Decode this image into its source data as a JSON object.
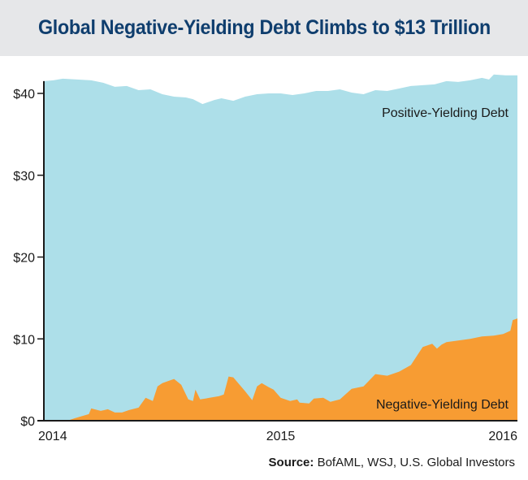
{
  "title": "Global Negative-Yielding Debt Climbs to $13 Trillion",
  "source": {
    "label": "Source:",
    "text": "BofAML, WSJ, U.S. Global Investors"
  },
  "colors": {
    "title": "#0f3e6e",
    "title_bar_bg": "#e6e7e9",
    "positive": "#addfe9",
    "negative": "#f79c33",
    "axis": "#1a1a1a"
  },
  "chart_data": {
    "type": "area",
    "stacked": true,
    "title": "Global Negative-Yielding Debt Climbs to $13 Trillion",
    "xlabel": "",
    "ylabel": "",
    "units": "USD trillions",
    "xlim": [
      2014.0,
      2016.0
    ],
    "ylim": [
      0,
      42
    ],
    "grid": false,
    "x_ticks": [
      {
        "value": 2014,
        "label": "2014"
      },
      {
        "value": 2015,
        "label": "2015"
      },
      {
        "value": 2016,
        "label": "2016"
      }
    ],
    "y_ticks": [
      {
        "value": 0,
        "label": "$0"
      },
      {
        "value": 10,
        "label": "$10"
      },
      {
        "value": 20,
        "label": "$20"
      },
      {
        "value": 30,
        "label": "$30"
      },
      {
        "value": 40,
        "label": "$40"
      }
    ],
    "series": [
      {
        "name": "Negative-Yielding Debt",
        "label": "Negative-Yielding Debt",
        "x": [
          2014.0,
          2014.1,
          2014.13,
          2014.19,
          2014.2,
          2014.24,
          2014.27,
          2014.3,
          2014.33,
          2014.36,
          2014.4,
          2014.43,
          2014.46,
          2014.48,
          2014.5,
          2014.53,
          2014.55,
          2014.58,
          2014.61,
          2014.63,
          2014.64,
          2014.66,
          2014.7,
          2014.74,
          2014.76,
          2014.78,
          2014.8,
          2014.85,
          2014.88,
          2014.9,
          2014.92,
          2014.95,
          2014.97,
          2015.0,
          2015.04,
          2015.07,
          2015.08,
          2015.12,
          2015.14,
          2015.18,
          2015.21,
          2015.25,
          2015.3,
          2015.35,
          2015.4,
          2015.45,
          2015.5,
          2015.55,
          2015.6,
          2015.64,
          2015.66,
          2015.68,
          2015.7,
          2015.75,
          2015.8,
          2015.85,
          2015.9,
          2015.94,
          2015.97,
          2015.98,
          2016.0
        ],
        "y": [
          0.0,
          0.0,
          0.3,
          0.8,
          1.5,
          1.2,
          1.4,
          1.0,
          1.0,
          1.3,
          1.6,
          2.8,
          2.4,
          4.2,
          4.6,
          4.9,
          5.1,
          4.4,
          2.6,
          2.4,
          3.8,
          2.6,
          2.8,
          3.0,
          3.2,
          5.4,
          5.3,
          3.6,
          2.5,
          4.2,
          4.6,
          4.1,
          3.8,
          2.8,
          2.4,
          2.6,
          2.2,
          2.1,
          2.7,
          2.8,
          2.3,
          2.6,
          3.9,
          4.2,
          5.7,
          5.5,
          6.0,
          6.8,
          9.0,
          9.4,
          8.8,
          9.3,
          9.6,
          9.8,
          10.0,
          10.3,
          10.4,
          10.6,
          11.0,
          12.3,
          12.5
        ]
      },
      {
        "name": "Positive-Yielding Debt",
        "label": "Positive-Yielding Debt",
        "total_x": [
          2014.0,
          2014.04,
          2014.08,
          2014.14,
          2014.2,
          2014.25,
          2014.3,
          2014.35,
          2014.4,
          2014.45,
          2014.5,
          2014.55,
          2014.6,
          2014.63,
          2014.67,
          2014.72,
          2014.75,
          2014.8,
          2014.85,
          2014.9,
          2014.95,
          2015.0,
          2015.05,
          2015.1,
          2015.15,
          2015.2,
          2015.25,
          2015.3,
          2015.35,
          2015.4,
          2015.45,
          2015.5,
          2015.55,
          2015.6,
          2015.65,
          2015.7,
          2015.75,
          2015.8,
          2015.85,
          2015.88,
          2015.9,
          2015.95,
          2016.0
        ],
        "total_y": [
          41.5,
          41.6,
          41.8,
          41.7,
          41.6,
          41.3,
          40.8,
          40.9,
          40.4,
          40.5,
          39.9,
          39.6,
          39.5,
          39.3,
          38.7,
          39.2,
          39.4,
          39.1,
          39.6,
          39.9,
          40.0,
          40.0,
          39.8,
          40.0,
          40.3,
          40.3,
          40.5,
          40.1,
          39.9,
          40.4,
          40.3,
          40.6,
          40.9,
          41.0,
          41.1,
          41.5,
          41.4,
          41.6,
          41.9,
          41.7,
          42.3,
          42.2,
          42.2
        ],
        "note": "Positive-yielding value = total minus negative-yielding at each date"
      }
    ],
    "annotations": [
      {
        "text": "Positive-Yielding Debt",
        "x": 2015.75,
        "y": 37.5
      },
      {
        "text": "Negative-Yielding Debt",
        "x": 2015.75,
        "y": 2.0
      }
    ],
    "legend": "none (inline labels)"
  }
}
